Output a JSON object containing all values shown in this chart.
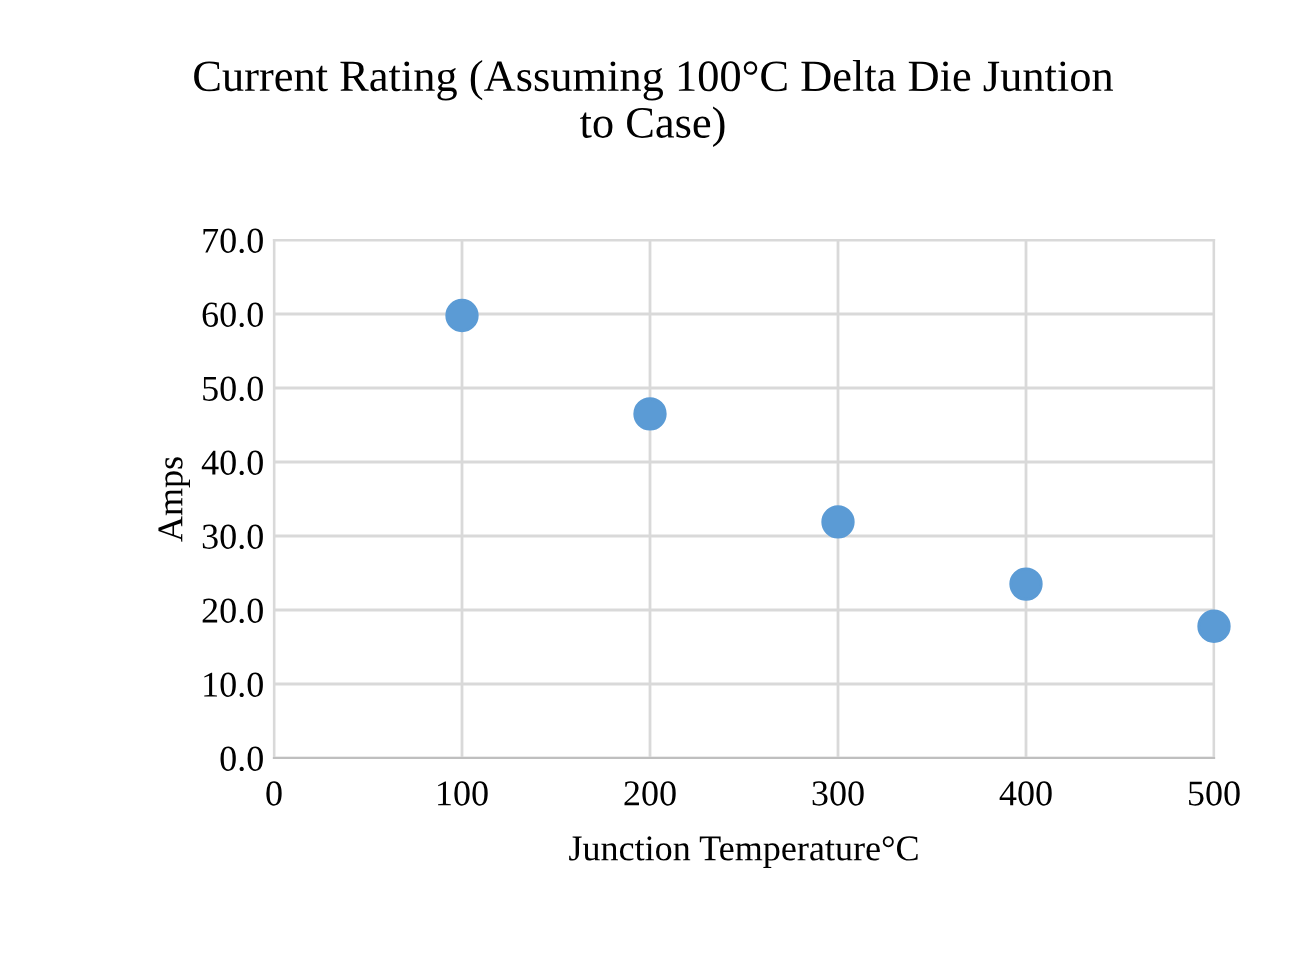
{
  "chart_data": {
    "type": "scatter",
    "title": "Current Rating (Assuming 100°C Delta Die Juntion to Case)",
    "xlabel": "Junction Temperature°C",
    "ylabel": "Amps",
    "x": [
      100,
      200,
      300,
      400,
      500
    ],
    "series": [
      {
        "color": "#5b9bd5",
        "values": [
          59.8,
          46.5,
          31.9,
          23.5,
          17.8
        ]
      }
    ],
    "xlim": [
      0,
      500
    ],
    "xticks": [
      0,
      100,
      200,
      300,
      400,
      500
    ],
    "ylim": [
      0,
      70
    ],
    "yticks": [
      {
        "value": 0,
        "label": "0.0"
      },
      {
        "value": 10,
        "label": "10.0"
      },
      {
        "value": 20,
        "label": "20.0"
      },
      {
        "value": 30,
        "label": "30.0"
      },
      {
        "value": 40,
        "label": "40.0"
      },
      {
        "value": 50,
        "label": "50.0"
      },
      {
        "value": 60,
        "label": "60.0"
      },
      {
        "value": 70,
        "label": "70.0"
      }
    ],
    "grid": true,
    "marker": "circle"
  }
}
